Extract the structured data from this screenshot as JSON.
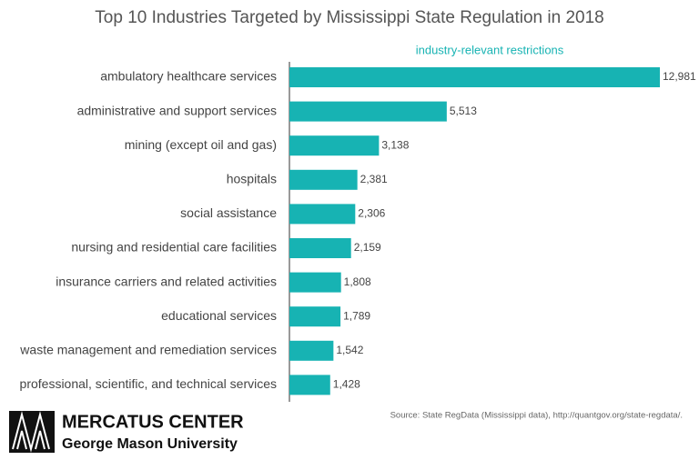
{
  "chart_data": {
    "type": "bar",
    "orientation": "horizontal",
    "title": "Top 10 Industries Targeted by Mississippi State Regulation in 2018",
    "subtitle": "industry-relevant restrictions",
    "categories": [
      "ambulatory healthcare services",
      "administrative and support services",
      "mining (except oil and gas)",
      "hospitals",
      "social assistance",
      "nursing and residential care facilities",
      "insurance carriers and related activities",
      "educational services",
      "waste management and remediation services",
      "professional, scientific, and technical services"
    ],
    "values": [
      12981,
      5513,
      3138,
      2381,
      2306,
      2159,
      1808,
      1789,
      1542,
      1428
    ],
    "value_labels": [
      "12,981",
      "5,513",
      "3,138",
      "2,381",
      "2,306",
      "2,159",
      "1,808",
      "1,789",
      "1,542",
      "1,428"
    ],
    "color": "#17b3b3",
    "source": "Source: State RegData (Mississippi data), http://quantgov.org/state-regdata/.",
    "logo": {
      "name": "MERCATUS CENTER",
      "subtitle": "George Mason University"
    }
  }
}
